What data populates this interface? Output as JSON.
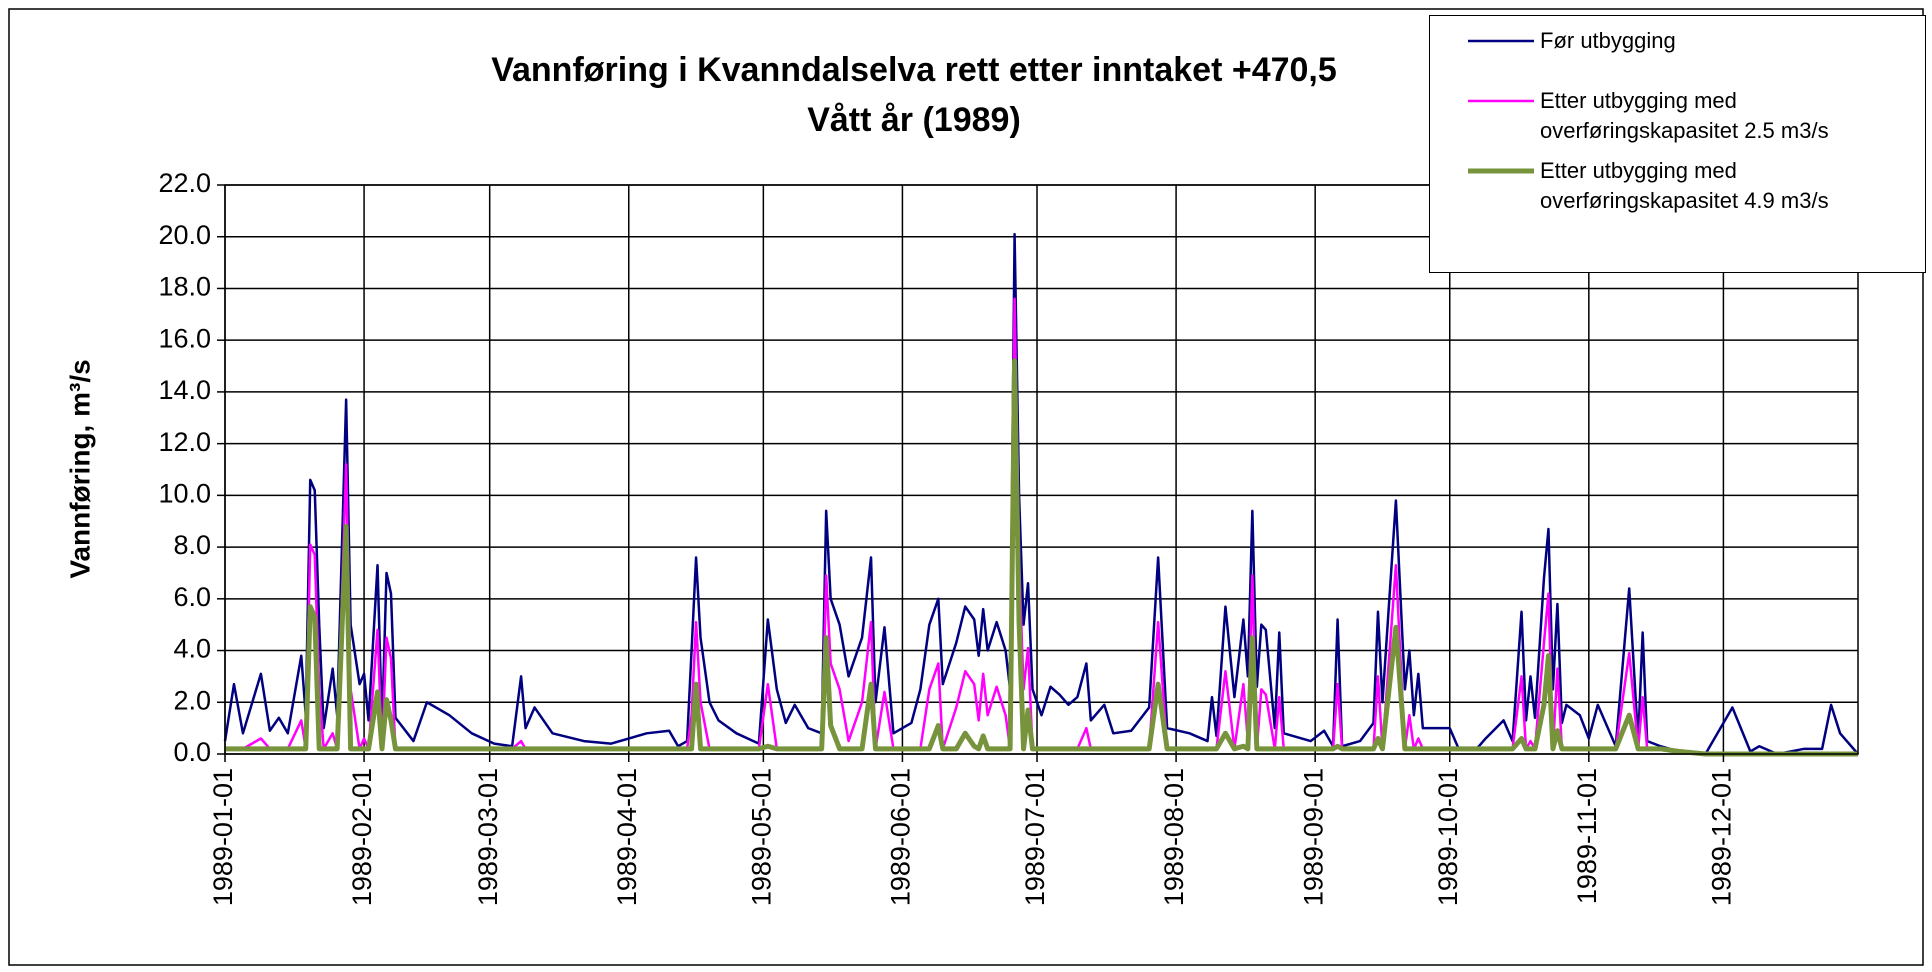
{
  "chart_data": {
    "type": "line",
    "title": "Vannføring i Kvanndalselva rett etter inntaket +470,5",
    "subtitle": "Vått år (1989)",
    "y_label": "Vannføring, m³/s",
    "grid": true,
    "legend_position": "top-right",
    "xlim": [
      "1989-01-01",
      "1989-12-31"
    ],
    "xticks": [
      "1989-01-01",
      "1989-02-01",
      "1989-03-01",
      "1989-04-01",
      "1989-05-01",
      "1989-06-01",
      "1989-07-01",
      "1989-08-01",
      "1989-09-01",
      "1989-10-01",
      "1989-11-01",
      "1989-12-01"
    ],
    "ylim": [
      0,
      22
    ],
    "yticks": [
      {
        "value": 0,
        "label": "0.0"
      },
      {
        "value": 2,
        "label": "2.0"
      },
      {
        "value": 4,
        "label": "4.0"
      },
      {
        "value": 6,
        "label": "6.0"
      },
      {
        "value": 8,
        "label": "8.0"
      },
      {
        "value": 10,
        "label": "10.0"
      },
      {
        "value": 12,
        "label": "12.0"
      },
      {
        "value": 14,
        "label": "14.0"
      },
      {
        "value": 16,
        "label": "16.0"
      },
      {
        "value": 18,
        "label": "18.0"
      },
      {
        "value": 20,
        "label": "20.0"
      },
      {
        "value": 22,
        "label": "22.0"
      }
    ],
    "x": [
      "1989-01-01",
      "1989-01-03",
      "1989-01-05",
      "1989-01-09",
      "1989-01-11",
      "1989-01-13",
      "1989-01-15",
      "1989-01-18",
      "1989-01-19",
      "1989-01-20",
      "1989-01-21",
      "1989-01-22",
      "1989-01-23",
      "1989-01-25",
      "1989-01-26",
      "1989-01-28",
      "1989-01-29",
      "1989-01-31",
      "1989-02-01",
      "1989-02-02",
      "1989-02-04",
      "1989-02-05",
      "1989-02-06",
      "1989-02-07",
      "1989-02-08",
      "1989-02-12",
      "1989-02-15",
      "1989-02-20",
      "1989-02-25",
      "1989-03-02",
      "1989-03-06",
      "1989-03-08",
      "1989-03-09",
      "1989-03-11",
      "1989-03-15",
      "1989-03-22",
      "1989-03-28",
      "1989-04-05",
      "1989-04-10",
      "1989-04-12",
      "1989-04-14",
      "1989-04-15",
      "1989-04-16",
      "1989-04-17",
      "1989-04-19",
      "1989-04-21",
      "1989-04-25",
      "1989-04-30",
      "1989-05-02",
      "1989-05-04",
      "1989-05-06",
      "1989-05-08",
      "1989-05-11",
      "1989-05-14",
      "1989-05-15",
      "1989-05-16",
      "1989-05-18",
      "1989-05-20",
      "1989-05-23",
      "1989-05-25",
      "1989-05-26",
      "1989-05-28",
      "1989-05-30",
      "1989-06-03",
      "1989-06-05",
      "1989-06-07",
      "1989-06-09",
      "1989-06-10",
      "1989-06-13",
      "1989-06-15",
      "1989-06-17",
      "1989-06-18",
      "1989-06-19",
      "1989-06-20",
      "1989-06-22",
      "1989-06-24",
      "1989-06-25",
      "1989-06-26",
      "1989-06-27",
      "1989-06-28",
      "1989-06-29",
      "1989-06-30",
      "1989-07-02",
      "1989-07-04",
      "1989-07-06",
      "1989-07-08",
      "1989-07-10",
      "1989-07-12",
      "1989-07-13",
      "1989-07-16",
      "1989-07-18",
      "1989-07-22",
      "1989-07-26",
      "1989-07-28",
      "1989-07-30",
      "1989-08-04",
      "1989-08-08",
      "1989-08-09",
      "1989-08-10",
      "1989-08-12",
      "1989-08-14",
      "1989-08-16",
      "1989-08-17",
      "1989-08-18",
      "1989-08-19",
      "1989-08-20",
      "1989-08-21",
      "1989-08-23",
      "1989-08-24",
      "1989-08-25",
      "1989-08-31",
      "1989-09-03",
      "1989-09-05",
      "1989-09-06",
      "1989-09-07",
      "1989-09-11",
      "1989-09-14",
      "1989-09-15",
      "1989-09-16",
      "1989-09-19",
      "1989-09-21",
      "1989-09-22",
      "1989-09-23",
      "1989-09-24",
      "1989-09-25",
      "1989-09-28",
      "1989-10-01",
      "1989-10-03",
      "1989-10-07",
      "1989-10-09",
      "1989-10-13",
      "1989-10-15",
      "1989-10-17",
      "1989-10-18",
      "1989-10-19",
      "1989-10-20",
      "1989-10-22",
      "1989-10-23",
      "1989-10-24",
      "1989-10-25",
      "1989-10-26",
      "1989-10-27",
      "1989-10-30",
      "1989-11-01",
      "1989-11-03",
      "1989-11-07",
      "1989-11-10",
      "1989-11-12",
      "1989-11-13",
      "1989-11-14",
      "1989-11-17",
      "1989-11-21",
      "1989-11-27",
      "1989-12-03",
      "1989-12-07",
      "1989-12-09",
      "1989-12-13",
      "1989-12-19",
      "1989-12-23",
      "1989-12-25",
      "1989-12-27",
      "1989-12-31"
    ],
    "series": [
      {
        "name": "Før utbygging",
        "color": "#000080",
        "width": 2.5,
        "values": [
          0.5,
          2.7,
          0.8,
          3.1,
          0.9,
          1.4,
          0.8,
          3.8,
          1.5,
          10.6,
          10.2,
          5.0,
          1.0,
          3.3,
          1.5,
          13.7,
          5.0,
          2.7,
          3.1,
          1.3,
          7.3,
          1.0,
          7.0,
          6.2,
          1.4,
          0.5,
          2.0,
          1.5,
          0.8,
          0.4,
          0.3,
          3.0,
          1.0,
          1.8,
          0.8,
          0.5,
          0.4,
          0.8,
          0.9,
          0.3,
          0.5,
          4.0,
          7.6,
          4.5,
          2.0,
          1.3,
          0.8,
          0.4,
          5.2,
          2.5,
          1.2,
          1.9,
          1.0,
          0.8,
          9.4,
          6.0,
          5.0,
          3.0,
          4.5,
          7.6,
          2.0,
          4.9,
          0.8,
          1.2,
          2.5,
          5.0,
          6.0,
          2.7,
          4.3,
          5.7,
          5.2,
          3.8,
          5.6,
          4.0,
          5.1,
          4.0,
          2.5,
          20.1,
          10.0,
          5.0,
          6.6,
          2.5,
          1.5,
          2.6,
          2.3,
          1.9,
          2.2,
          3.5,
          1.3,
          1.9,
          0.8,
          0.9,
          1.8,
          7.6,
          1.0,
          0.8,
          0.5,
          2.2,
          0.7,
          5.7,
          2.2,
          5.2,
          3.0,
          9.4,
          2.6,
          5.0,
          4.8,
          1.0,
          4.7,
          0.8,
          0.5,
          0.9,
          0.3,
          5.2,
          0.3,
          0.5,
          1.2,
          5.5,
          2.0,
          9.8,
          2.5,
          4.0,
          1.5,
          3.1,
          1.0,
          1.0,
          1.0,
          0.2,
          0.2,
          0.6,
          1.3,
          0.5,
          5.5,
          1.3,
          3.0,
          1.4,
          6.8,
          8.7,
          2.5,
          5.8,
          1.2,
          1.9,
          1.5,
          0.6,
          1.9,
          0.3,
          6.4,
          0.5,
          4.7,
          0.5,
          0.3,
          0.1,
          0.0,
          1.8,
          0.1,
          0.3,
          0.0,
          0.2,
          0.2,
          1.9,
          0.8,
          0.0
        ]
      },
      {
        "name": "Etter utbygging med overføringskapasitet 2.5 m3/s",
        "color": "#ff00ff",
        "width": 2.5,
        "values": [
          0.2,
          0.2,
          0.2,
          0.6,
          0.2,
          0.2,
          0.2,
          1.3,
          0.2,
          8.1,
          7.7,
          2.5,
          0.2,
          0.8,
          0.2,
          11.2,
          2.5,
          0.2,
          0.6,
          0.2,
          4.8,
          0.2,
          4.5,
          3.7,
          0.2,
          0.2,
          0.2,
          0.2,
          0.2,
          0.2,
          0.2,
          0.5,
          0.2,
          0.2,
          0.2,
          0.2,
          0.2,
          0.2,
          0.2,
          0.2,
          0.2,
          1.5,
          5.1,
          2.0,
          0.2,
          0.2,
          0.2,
          0.2,
          2.7,
          0.2,
          0.2,
          0.2,
          0.2,
          0.2,
          6.9,
          3.5,
          2.5,
          0.5,
          2.0,
          5.1,
          0.2,
          2.4,
          0.2,
          0.2,
          0.2,
          2.5,
          3.5,
          0.2,
          1.8,
          3.2,
          2.7,
          1.3,
          3.1,
          1.5,
          2.6,
          1.5,
          0.2,
          17.6,
          7.5,
          2.5,
          4.1,
          0.2,
          0.2,
          0.2,
          0.2,
          0.2,
          0.2,
          1.0,
          0.2,
          0.2,
          0.2,
          0.2,
          0.2,
          5.1,
          0.2,
          0.2,
          0.2,
          0.2,
          0.2,
          3.2,
          0.2,
          2.7,
          0.5,
          6.9,
          0.2,
          2.5,
          2.3,
          0.2,
          2.2,
          0.2,
          0.2,
          0.2,
          0.2,
          2.7,
          0.2,
          0.2,
          0.2,
          3.0,
          0.2,
          7.3,
          0.2,
          1.5,
          0.2,
          0.6,
          0.2,
          0.2,
          0.2,
          0.2,
          0.2,
          0.2,
          0.2,
          0.2,
          3.0,
          0.2,
          0.5,
          0.2,
          4.3,
          6.2,
          0.2,
          3.3,
          0.2,
          0.2,
          0.2,
          0.2,
          0.2,
          0.2,
          3.9,
          0.2,
          2.2,
          0.2,
          0.2,
          0.1,
          0,
          0,
          0,
          0,
          0,
          0,
          0,
          0,
          0,
          0
        ]
      },
      {
        "name": "Etter utbygging med overføringskapasitet 4.9 m3/s",
        "color": "#77933c",
        "width": 5,
        "values": [
          0.2,
          0.2,
          0.2,
          0.2,
          0.2,
          0.2,
          0.2,
          0.2,
          0.2,
          5.7,
          5.3,
          0.2,
          0.2,
          0.2,
          0.2,
          8.8,
          0.2,
          0.2,
          0.2,
          0.2,
          2.4,
          0.2,
          2.1,
          1.3,
          0.2,
          0.2,
          0.2,
          0.2,
          0.2,
          0.2,
          0.2,
          0.2,
          0.2,
          0.2,
          0.2,
          0.2,
          0.2,
          0.2,
          0.2,
          0.2,
          0.2,
          0.2,
          2.7,
          0.2,
          0.2,
          0.2,
          0.2,
          0.2,
          0.3,
          0.2,
          0.2,
          0.2,
          0.2,
          0.2,
          4.5,
          1.1,
          0.2,
          0.2,
          0.2,
          2.7,
          0.2,
          0.2,
          0.2,
          0.2,
          0.2,
          0.2,
          1.1,
          0.2,
          0.2,
          0.8,
          0.3,
          0.2,
          0.7,
          0.2,
          0.2,
          0.2,
          0.2,
          15.2,
          5.1,
          0.2,
          1.7,
          0.2,
          0.2,
          0.2,
          0.2,
          0.2,
          0.2,
          0.2,
          0.2,
          0.2,
          0.2,
          0.2,
          0.2,
          2.7,
          0.2,
          0.2,
          0.2,
          0.2,
          0.2,
          0.8,
          0.2,
          0.3,
          0.2,
          4.5,
          0.2,
          0.2,
          0.2,
          0.2,
          0.2,
          0.2,
          0.2,
          0.2,
          0.2,
          0.3,
          0.2,
          0.2,
          0.2,
          0.6,
          0.2,
          4.9,
          0.2,
          0.2,
          0.2,
          0.2,
          0.2,
          0.2,
          0.2,
          0.2,
          0.2,
          0.2,
          0.2,
          0.2,
          0.6,
          0.2,
          0.2,
          0.2,
          1.9,
          3.8,
          0.2,
          0.9,
          0.2,
          0.2,
          0.2,
          0.2,
          0.2,
          0.2,
          1.5,
          0.2,
          0.2,
          0.2,
          0.2,
          0.1,
          0,
          0,
          0,
          0,
          0,
          0,
          0,
          0,
          0,
          0
        ]
      }
    ]
  }
}
